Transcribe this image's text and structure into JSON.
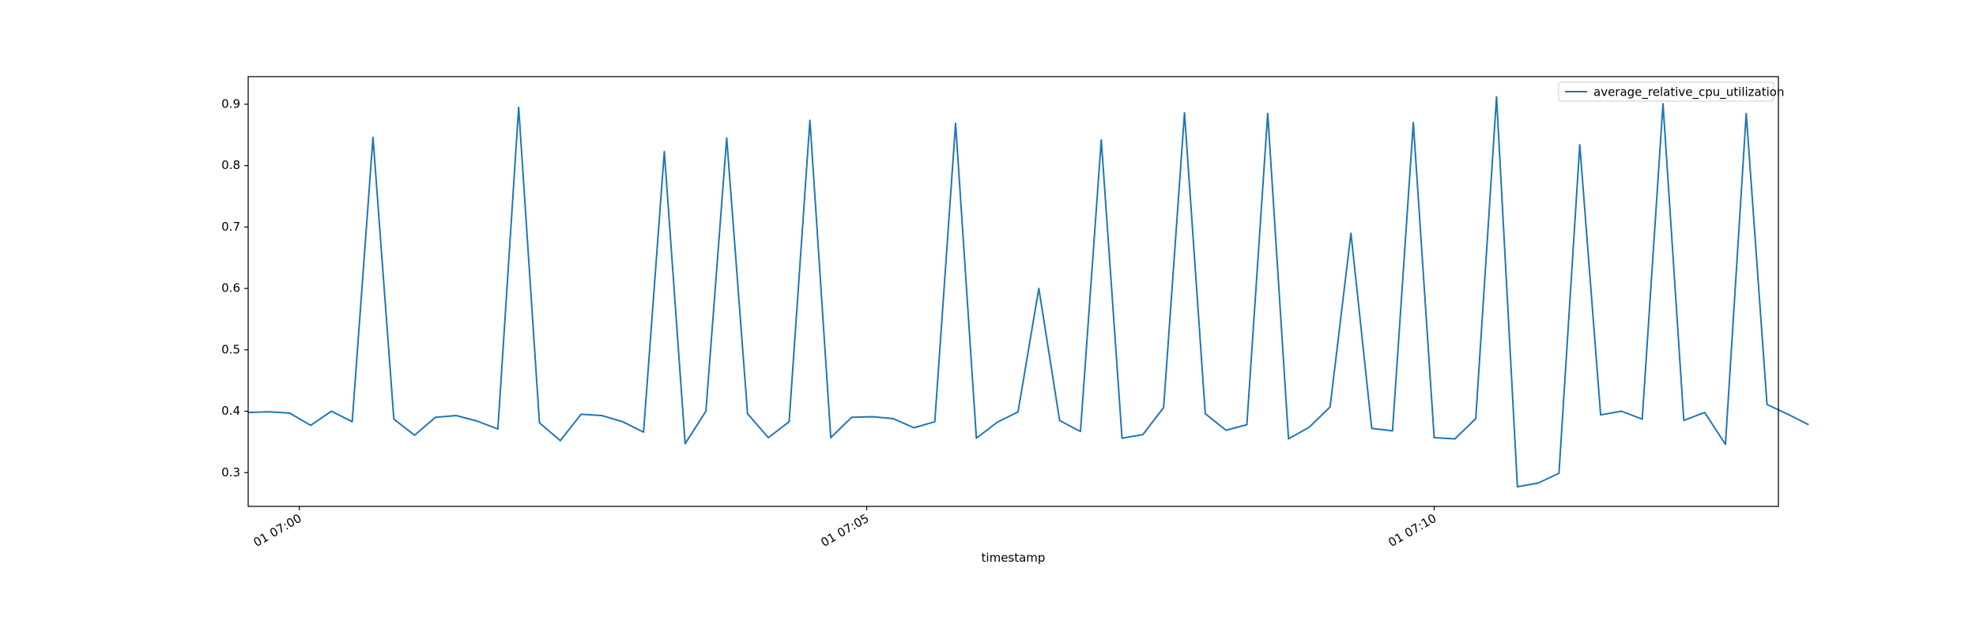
{
  "chart_data": {
    "type": "line",
    "title": "",
    "xlabel": "timestamp",
    "ylabel": "",
    "x_start": "01 06:59:33",
    "x_step_seconds": 11,
    "xlim": [
      "01 06:59:33",
      "01 07:13:02"
    ],
    "ylim": [
      0.245,
      0.945
    ],
    "x_ticks": [
      "01 07:00",
      "01 07:05",
      "01 07:10"
    ],
    "y_ticks": [
      0.3,
      0.4,
      0.5,
      0.6,
      0.7,
      0.8,
      0.9
    ],
    "y_tick_labels": [
      "0.3",
      "0.4",
      "0.5",
      "0.6",
      "0.7",
      "0.8",
      "0.9"
    ],
    "grid": false,
    "legend_position": "top-right",
    "series": [
      {
        "name": "average_relative_cpu_utilization",
        "color": "#1f77b4",
        "values": [
          0.398,
          0.399,
          0.397,
          0.377,
          0.4,
          0.383,
          0.846,
          0.387,
          0.361,
          0.39,
          0.393,
          0.384,
          0.371,
          0.895,
          0.381,
          0.352,
          0.395,
          0.393,
          0.383,
          0.366,
          0.823,
          0.347,
          0.4,
          0.845,
          0.396,
          0.357,
          0.383,
          0.874,
          0.357,
          0.39,
          0.391,
          0.388,
          0.373,
          0.383,
          0.869,
          0.356,
          0.382,
          0.399,
          0.6,
          0.385,
          0.367,
          0.842,
          0.356,
          0.362,
          0.406,
          0.886,
          0.396,
          0.369,
          0.378,
          0.885,
          0.355,
          0.374,
          0.407,
          0.69,
          0.372,
          0.368,
          0.87,
          0.357,
          0.355,
          0.388,
          0.912,
          0.277,
          0.283,
          0.299,
          0.834,
          0.394,
          0.4,
          0.387,
          0.901,
          0.385,
          0.398,
          0.346,
          0.885,
          0.411,
          0.395,
          0.378
        ]
      }
    ]
  }
}
